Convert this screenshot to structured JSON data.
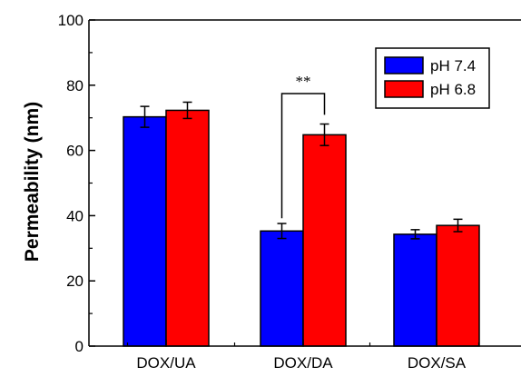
{
  "chart_data": {
    "type": "bar",
    "title": "",
    "xlabel": "",
    "ylabel": "Permeability (nm)",
    "categories": [
      "DOX/UA",
      "DOX/DA",
      "DOX/SA"
    ],
    "ylim": [
      0,
      100
    ],
    "yticks": [
      0,
      20,
      40,
      60,
      80,
      100
    ],
    "grid": false,
    "legend_position": "top-right",
    "series": [
      {
        "name": "pH 7.4",
        "color": "#0000ff",
        "values": [
          70.3,
          35.3,
          34.3
        ],
        "errors": [
          3.2,
          2.3,
          1.4
        ]
      },
      {
        "name": "pH 6.8",
        "color": "#ff0000",
        "values": [
          72.3,
          64.8,
          37.0
        ],
        "errors": [
          2.5,
          3.3,
          1.9
        ]
      }
    ],
    "annotations": [
      {
        "text": "**",
        "category": "DOX/DA"
      }
    ]
  }
}
